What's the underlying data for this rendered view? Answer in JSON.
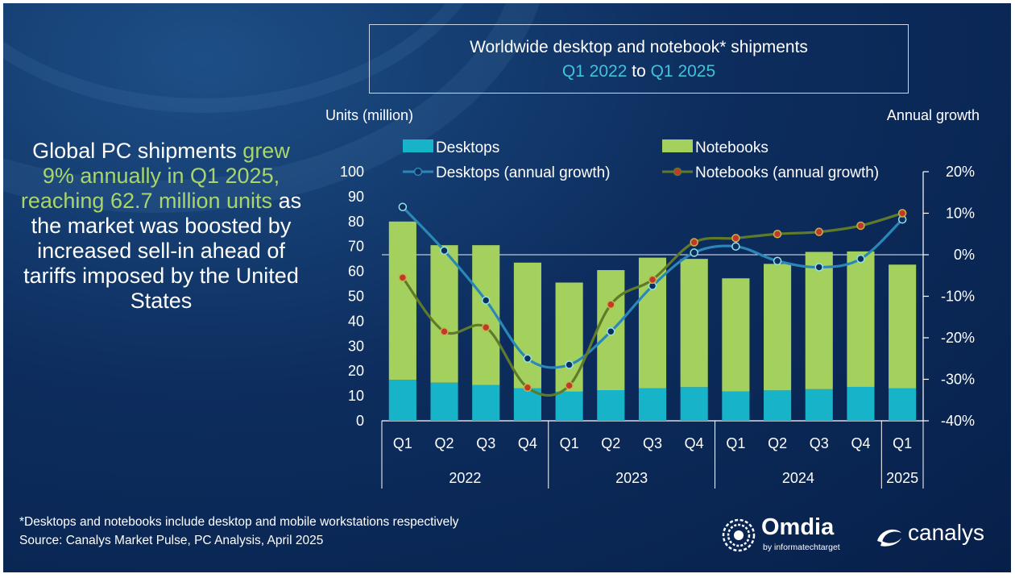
{
  "title": {
    "line1": "Worldwide desktop and notebook* shipments",
    "from": "Q1 2022",
    "to_word": "to",
    "to": "Q1 2025"
  },
  "headline": {
    "part1": "Global PC shipments",
    "part2": "grew 9% annually in Q1 2025, reaching 62.7 million units",
    "part3": "as the market was boosted by increased sell-in ahead of tariffs imposed by the United States"
  },
  "footnote": {
    "line1": "*Desktops and notebooks include desktop and mobile workstations respectively",
    "line2": "Source: Canalys Market Pulse, PC Analysis, April 2025"
  },
  "logos": {
    "omdia_name": "Omdia",
    "omdia_sub": "by informatechtarget",
    "canalys_name": "canalys"
  },
  "colors": {
    "desktops": "#17b3c9",
    "notebooks": "#a4d15e",
    "desktops_line": "#2a87b8",
    "notebooks_line": "#5f7a2a",
    "marker_fill": "#c0392b",
    "axis_text": "#ffffff"
  },
  "chart_data": {
    "type": "bar",
    "stacked": true,
    "y_left_label": "Units (million)",
    "y_right_label": "Annual growth",
    "ylim_left": [
      0,
      100
    ],
    "yticks_left": [
      "0",
      "10",
      "20",
      "30",
      "40",
      "50",
      "60",
      "70",
      "80",
      "90",
      "100"
    ],
    "ylim_right": [
      -40,
      20
    ],
    "yticks_right": [
      "-40%",
      "-30%",
      "-20%",
      "-10%",
      "0%",
      "10%",
      "20%"
    ],
    "categories": [
      "Q1",
      "Q2",
      "Q3",
      "Q4",
      "Q1",
      "Q2",
      "Q3",
      "Q4",
      "Q1",
      "Q2",
      "Q3",
      "Q4",
      "Q1"
    ],
    "years": [
      {
        "label": "2022",
        "count": 4
      },
      {
        "label": "2023",
        "count": 4
      },
      {
        "label": "2024",
        "count": 4
      },
      {
        "label": "2025",
        "count": 1
      }
    ],
    "series": [
      {
        "name": "Desktops",
        "kind": "bar",
        "values": [
          16.5,
          15.3,
          14.4,
          13.1,
          11.7,
          12.3,
          13.1,
          13.5,
          11.8,
          12.2,
          12.7,
          13.6,
          13.0
        ]
      },
      {
        "name": "Notebooks",
        "kind": "bar",
        "values": [
          63.5,
          55.2,
          56.1,
          50.4,
          43.8,
          48.2,
          52.4,
          51.5,
          45.4,
          50.8,
          55.1,
          54.4,
          49.7
        ]
      },
      {
        "name": "Desktops (annual growth)",
        "kind": "line",
        "axis": "right",
        "values": [
          11.5,
          1.0,
          -11.0,
          -25.0,
          -26.5,
          -18.5,
          -7.5,
          0.5,
          2.0,
          -1.5,
          -3.0,
          -1.0,
          8.5
        ]
      },
      {
        "name": "Notebooks (annual growth)",
        "kind": "line",
        "axis": "right",
        "values": [
          -5.5,
          -18.5,
          -17.5,
          -32.0,
          -31.5,
          -12.0,
          -6.0,
          3.0,
          4.0,
          5.0,
          5.5,
          7.0,
          10.0
        ]
      }
    ],
    "legend_position": "top",
    "grid": false
  }
}
